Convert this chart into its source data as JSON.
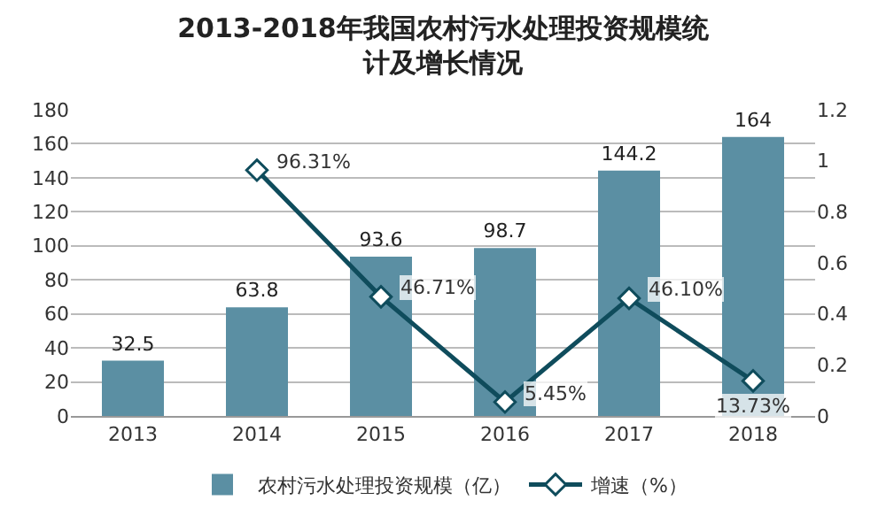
{
  "chart_data": {
    "type": "bar",
    "title": "2013-2018年我国农村污水处理投资规模统计及增长情况",
    "categories": [
      "2013",
      "2014",
      "2015",
      "2016",
      "2017",
      "2018"
    ],
    "series": [
      {
        "name": "农村污水处理投资规模（亿）",
        "color": "#5b8fa3",
        "values": [
          32.5,
          63.8,
          93.6,
          98.7,
          144.2,
          164
        ],
        "data_labels": true
      },
      {
        "name": "增速（%）",
        "type": "line",
        "axis": "y2",
        "color": "#0f4c5c",
        "marker": "diamond",
        "values": [
          null,
          0.9631,
          0.4671,
          0.0545,
          0.461,
          0.1373
        ],
        "value_labels": [
          null,
          "96.31%",
          "46.71%",
          "5.45%",
          "46.10%",
          "13.73%"
        ]
      }
    ],
    "ylim": [
      0,
      180
    ],
    "yticks": [
      0,
      20,
      40,
      60,
      80,
      100,
      120,
      140,
      160,
      180
    ],
    "y2lim": [
      0,
      1.2
    ],
    "y2ticks": [
      0,
      0.2,
      0.4,
      0.6,
      0.8,
      1,
      1.2
    ],
    "grid": "y",
    "legend": "bottom"
  }
}
